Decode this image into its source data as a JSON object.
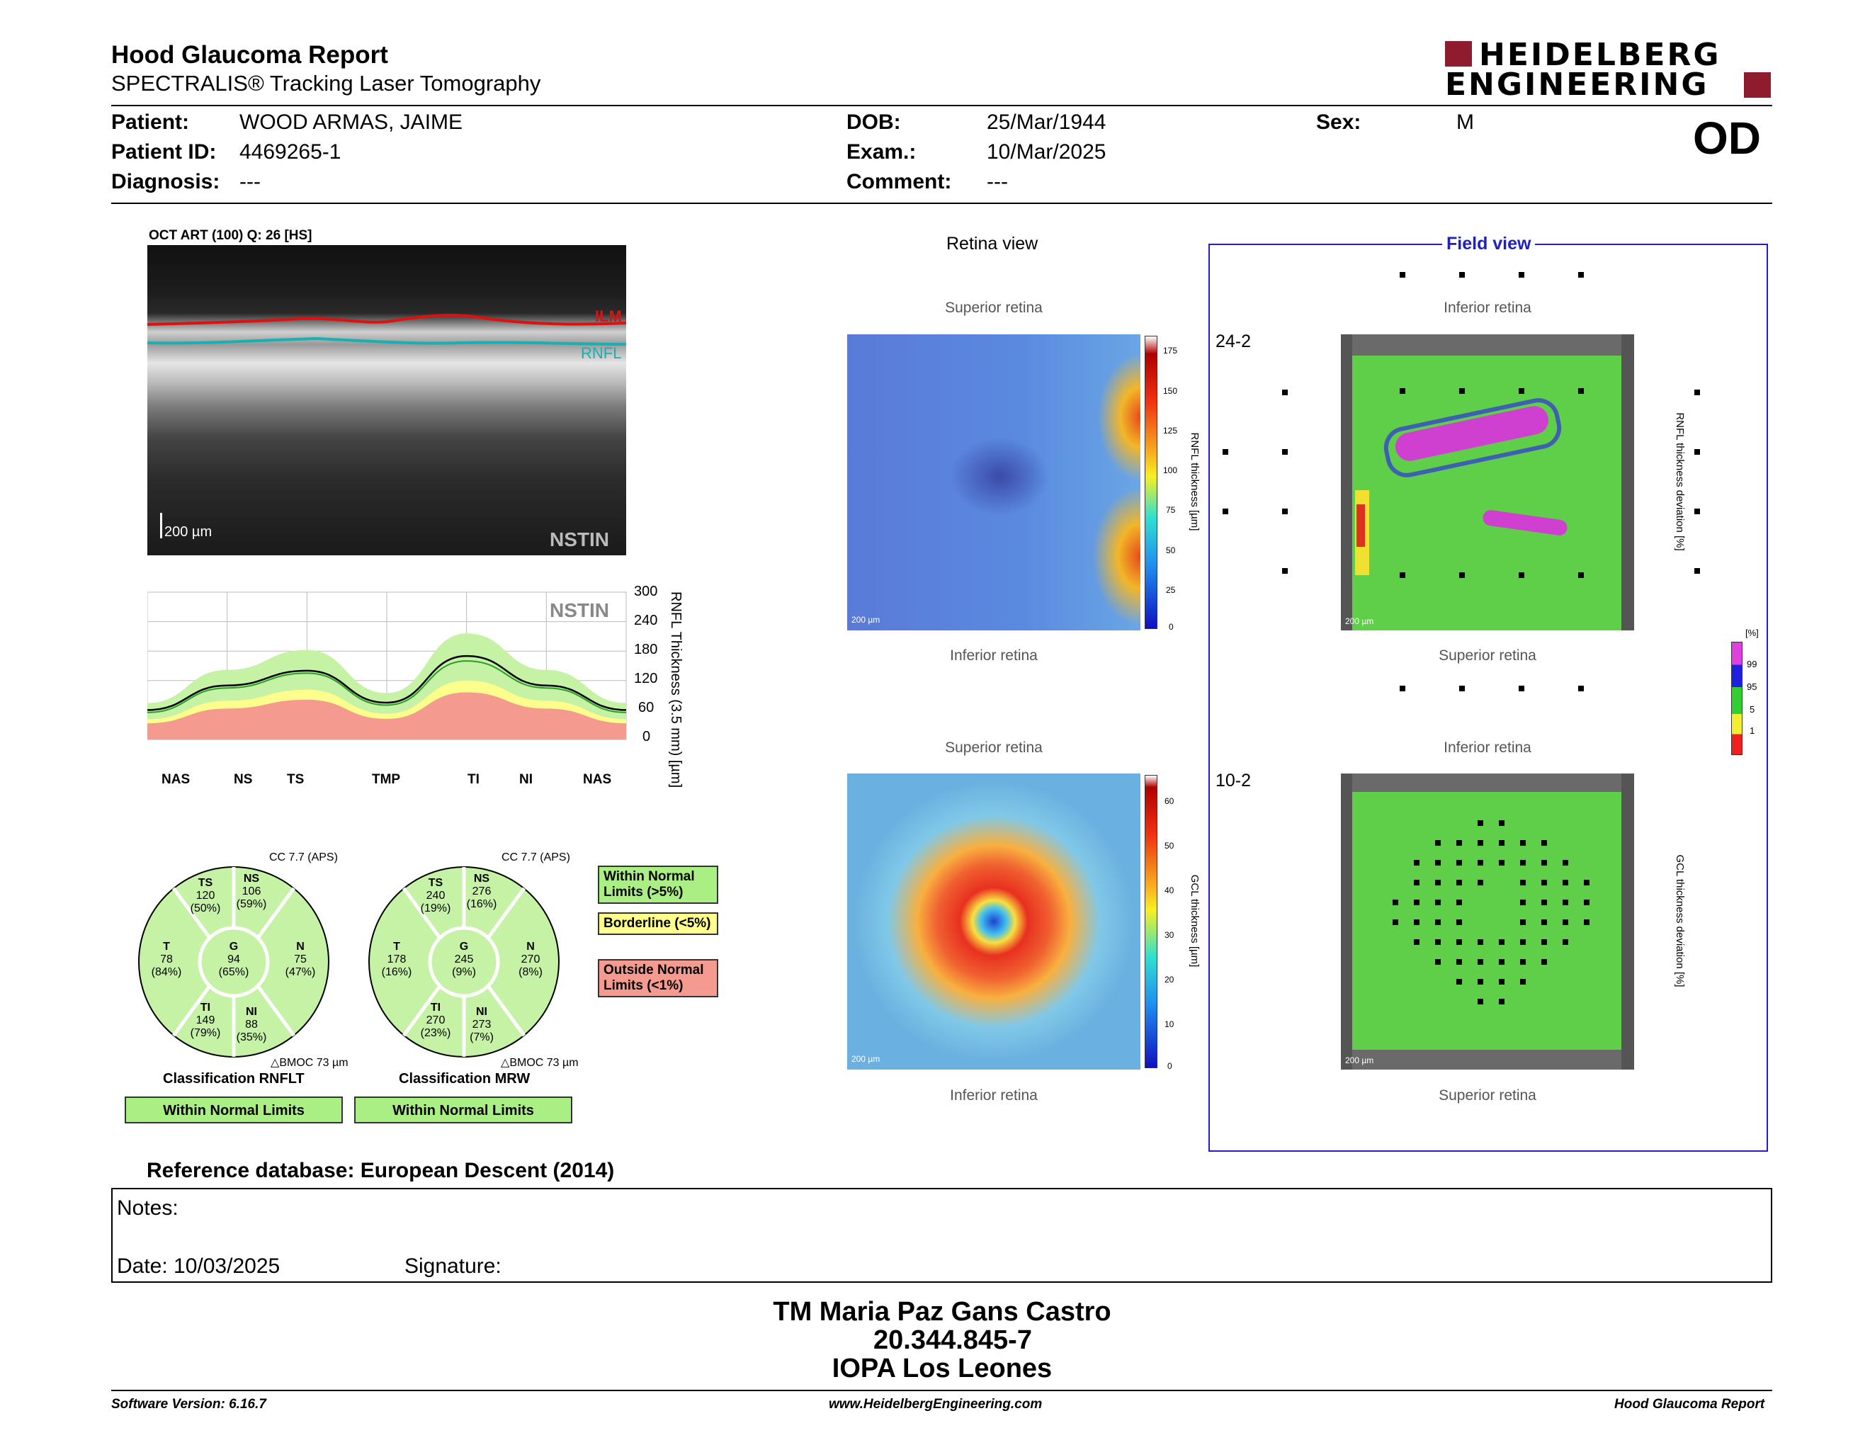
{
  "header": {
    "title": "Hood Glaucoma Report",
    "subtitle": "SPECTRALIS® Tracking Laser Tomography",
    "logo_line1": "HEIDELBERG",
    "logo_line2": "ENGINEERING",
    "eye": "OD"
  },
  "patient": {
    "patient_label": "Patient:",
    "patient_value": "WOOD ARMAS, JAIME",
    "id_label": "Patient ID:",
    "id_value": "4469265-1",
    "diagnosis_label": "Diagnosis:",
    "diagnosis_value": "---",
    "dob_label": "DOB:",
    "dob_value": "25/Mar/1944",
    "exam_label": "Exam.:",
    "exam_value": "10/Mar/2025",
    "comment_label": "Comment:",
    "comment_value": "---",
    "sex_label": "Sex:",
    "sex_value": "M"
  },
  "oct": {
    "title": "OCT ART (100) Q: 26 [HS]",
    "ilm_label": "ILM",
    "rnfl_label": "RNFL",
    "scale_label": "200 µm",
    "nstin_label": "NSTIN"
  },
  "profile_chart": {
    "nstin_label": "NSTIN",
    "y_axis_label": "RNFL Thickness (3.5 mm) [µm]",
    "y_ticks": [
      "300",
      "240",
      "180",
      "120",
      "60",
      "0"
    ],
    "x_labels": [
      "NAS",
      "NS",
      "TS",
      "TMP",
      "TI",
      "NI",
      "NAS"
    ]
  },
  "chart_data": {
    "type": "line",
    "ylabel": "RNFL Thickness (3.5 mm) [µm]",
    "ylim": [
      0,
      300
    ],
    "categories": [
      "NAS",
      "NS",
      "TS",
      "TMP",
      "TI",
      "NI",
      "NAS"
    ],
    "series": [
      {
        "values": [
          60,
          110,
          140,
          75,
          170,
          110,
          60
        ]
      },
      {
        "values": [
          55,
          105,
          135,
          70,
          160,
          105,
          55
        ]
      }
    ]
  },
  "circle_rnflt": {
    "cc": "CC 7.7 (APS)",
    "TS": {
      "n": "TS",
      "v": "120",
      "p": "(50%)"
    },
    "NS": {
      "n": "NS",
      "v": "106",
      "p": "(59%)"
    },
    "T": {
      "n": "T",
      "v": "78",
      "p": "(84%)"
    },
    "G": {
      "n": "G",
      "v": "94",
      "p": "(65%)"
    },
    "N": {
      "n": "N",
      "v": "75",
      "p": "(47%)"
    },
    "TI": {
      "n": "TI",
      "v": "149",
      "p": "(79%)"
    },
    "NI": {
      "n": "NI",
      "v": "88",
      "p": "(35%)"
    },
    "bmoc": "BMOC 73 µm",
    "classification": "Classification RNFLT",
    "result": "Within Normal Limits"
  },
  "circle_mrw": {
    "cc": "CC 7.7 (APS)",
    "TS": {
      "n": "TS",
      "v": "240",
      "p": "(19%)"
    },
    "NS": {
      "n": "NS",
      "v": "276",
      "p": "(16%)"
    },
    "T": {
      "n": "T",
      "v": "178",
      "p": "(16%)"
    },
    "G": {
      "n": "G",
      "v": "245",
      "p": "(9%)"
    },
    "N": {
      "n": "N",
      "v": "270",
      "p": "(8%)"
    },
    "TI": {
      "n": "TI",
      "v": "270",
      "p": "(23%)"
    },
    "NI": {
      "n": "NI",
      "v": "273",
      "p": "(7%)"
    },
    "bmoc": "BMOC 73 µm",
    "classification": "Classification MRW",
    "result": "Within Normal Limits"
  },
  "legend": {
    "wnl": "Within Normal Limits (>5%)",
    "borderline": "Borderline (<5%)",
    "onl": "Outside Normal Limits (<1%)",
    "colors": {
      "wnl": "#a9ef84",
      "borderline": "#fefe8c",
      "onl": "#f49a8e"
    }
  },
  "retina_view": {
    "title": "Retina view",
    "top1": "Superior retina",
    "bottom1": "Inferior retina",
    "top2": "Superior retina",
    "bottom2": "Inferior retina",
    "scale": "200 µm",
    "rnfl_bar_label": "RNFL thickness [µm]",
    "rnfl_ticks": [
      "175",
      "150",
      "125",
      "100",
      "75",
      "50",
      "25",
      "0"
    ],
    "gcl_bar_label": "GCL thickness [µm]",
    "gcl_ticks": [
      "60",
      "50",
      "40",
      "30",
      "20",
      "10",
      "0"
    ]
  },
  "field_view": {
    "title": "Field view",
    "label_242": "24-2",
    "label_102": "10-2",
    "top1": "Inferior retina",
    "bottom1": "Superior retina",
    "top2": "Inferior retina",
    "bottom2": "Superior retina",
    "scale": "200 µm",
    "rnfl_dev_label": "RNFL thickness deviation [%]",
    "gcl_dev_label": "GCL thickness deviation [%]",
    "pct_label": "[%]",
    "pct_ticks": [
      "99",
      "95",
      "5",
      "1"
    ]
  },
  "reference_db": "Reference database: European Descent (2014)",
  "notes": {
    "notes_label": "Notes:",
    "date_label": "Date: 10/03/2025",
    "signature_label": "Signature:"
  },
  "stamp": {
    "line1": "TM Maria Paz Gans Castro",
    "line2": "20.344.845-7",
    "line3": "IOPA Los Leones"
  },
  "footer": {
    "left": "Software Version: 6.16.7",
    "center": "www.HeidelbergEngineering.com",
    "right": "Hood Glaucoma Report"
  }
}
